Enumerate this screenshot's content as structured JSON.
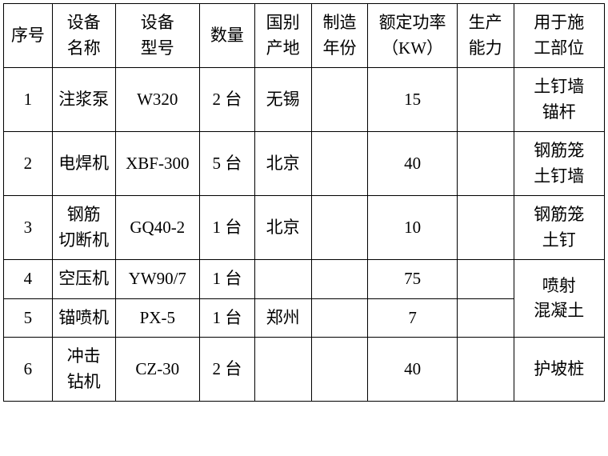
{
  "table": {
    "columns": [
      {
        "label": "序号",
        "class": "col-seq"
      },
      {
        "label": "设备\n名称",
        "class": "col-name"
      },
      {
        "label": "设备\n型号",
        "class": "col-model"
      },
      {
        "label": "数量",
        "class": "col-qty"
      },
      {
        "label": "国别\n产地",
        "class": "col-origin"
      },
      {
        "label": "制造\n年份",
        "class": "col-year"
      },
      {
        "label": "额定功率\n（KW）",
        "class": "col-power"
      },
      {
        "label": "生产\n能力",
        "class": "col-capacity"
      },
      {
        "label": "用于施\n工部位",
        "class": "col-usage"
      }
    ],
    "rows": [
      {
        "seq": "1",
        "name": "注浆泵",
        "model": "W320",
        "qty": "2 台",
        "origin": "无锡",
        "year": "",
        "power": "15",
        "capacity": "",
        "usage": "土钉墙\n锚杆"
      },
      {
        "seq": "2",
        "name": "电焊机",
        "model": "XBF-300",
        "qty": "5 台",
        "origin": "北京",
        "year": "",
        "power": "40",
        "capacity": "",
        "usage": "钢筋笼\n土钉墙"
      },
      {
        "seq": "3",
        "name": "钢筋\n切断机",
        "model": "GQ40-2",
        "qty": "1 台",
        "origin": "北京",
        "year": "",
        "power": "10",
        "capacity": "",
        "usage": "钢筋笼\n土钉"
      },
      {
        "seq": "4",
        "name": "空压机",
        "model": "YW90/7",
        "qty": "1 台",
        "origin": "",
        "year": "",
        "power": "75",
        "capacity": "",
        "usage_merge_start": true,
        "usage": "喷射\n混凝土",
        "usage_rowspan": 2
      },
      {
        "seq": "5",
        "name": "锚喷机",
        "model": "PX-5",
        "qty": "1 台",
        "origin": "郑州",
        "year": "",
        "power": "7",
        "capacity": "",
        "usage_merged": true
      },
      {
        "seq": "6",
        "name": "冲击\n钻机",
        "model": "CZ-30",
        "qty": "2 台",
        "origin": "",
        "year": "",
        "power": "40",
        "capacity": "",
        "usage": "护坡桩"
      }
    ],
    "border_color": "#000000",
    "background_color": "#ffffff",
    "font_size": 21,
    "cell_padding": "8px 2px"
  }
}
